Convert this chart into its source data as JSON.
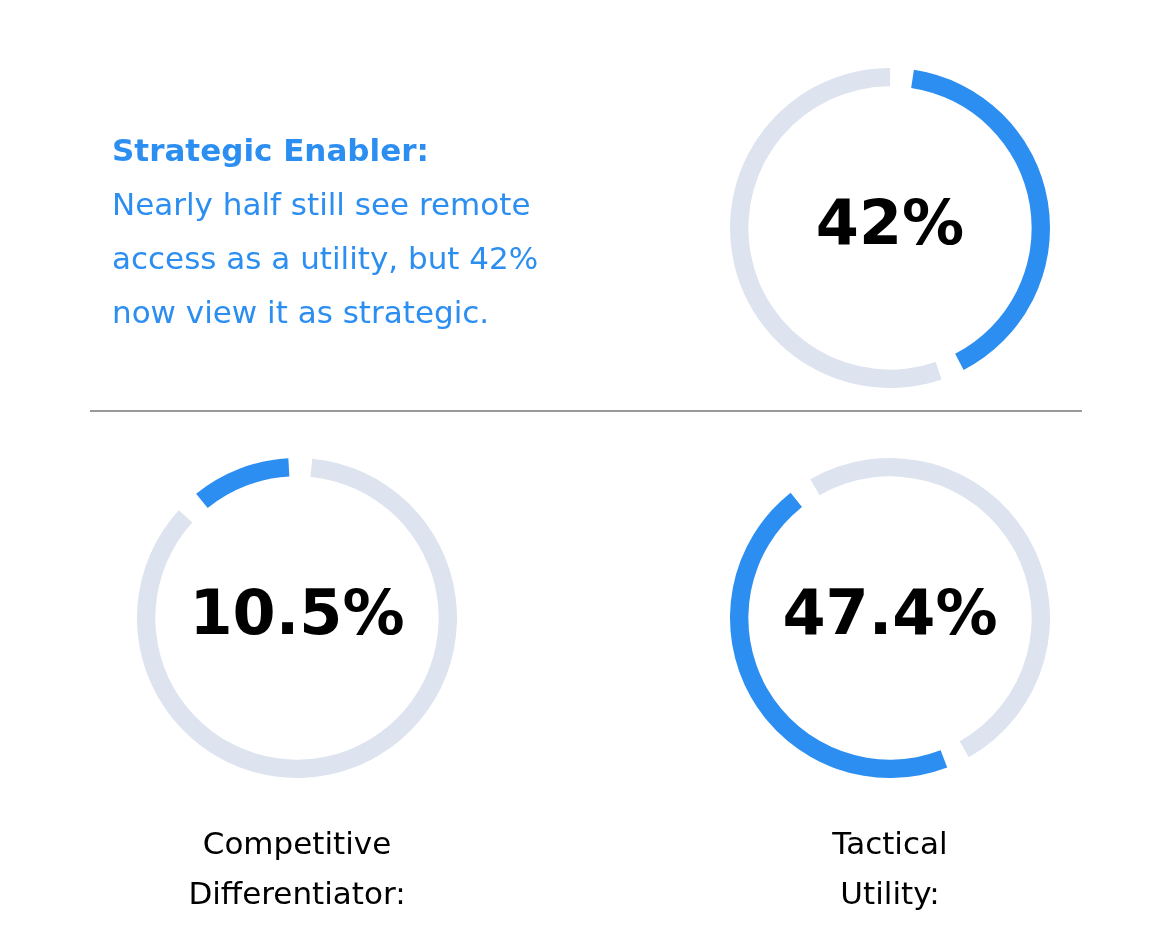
{
  "chart_data": [
    {
      "type": "donut",
      "title": "Strategic Enabler:",
      "subtitle": "Nearly half still see remote access as a utility, but 42% now view it as strategic.",
      "categories": [
        null,
        null
      ],
      "values": [
        42,
        58
      ],
      "colors": [
        "#2b8ef0",
        "#dde4ef"
      ],
      "value_labels": [
        "42%",
        null
      ],
      "legend": false
    },
    {
      "type": "donut",
      "title": "Competitive Differentiator:",
      "categories": [
        null,
        null
      ],
      "values": [
        10.5,
        89.5
      ],
      "colors": [
        "#2b8ef0",
        "#dde4ef"
      ],
      "value_labels": [
        "10.5%",
        null
      ],
      "legend": false
    },
    {
      "type": "donut",
      "title": "Tactical Utility:",
      "categories": [
        null,
        null
      ],
      "values": [
        47.4,
        52.6
      ],
      "colors": [
        "#2b8ef0",
        "#dde4ef"
      ],
      "value_labels": [
        "47.4%",
        null
      ],
      "legend": false
    }
  ]
}
